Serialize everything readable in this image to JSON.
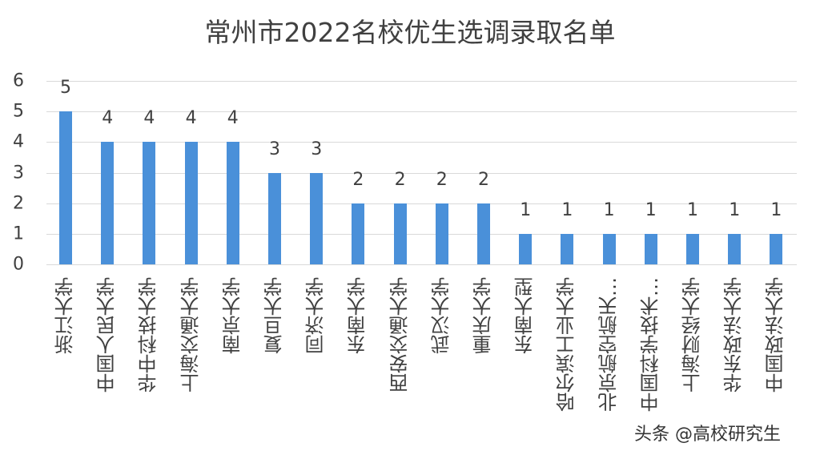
{
  "chart_data": {
    "type": "bar",
    "title": "常州市2022名校优生选调录取名单",
    "xlabel": "",
    "ylabel": "",
    "ylim": [
      0,
      6
    ],
    "yticks": [
      0,
      1,
      2,
      3,
      4,
      5,
      6
    ],
    "grid": true,
    "legend": null,
    "bar_color": "#4a90d9",
    "categories": [
      "浙江大学",
      "中国人民大学",
      "华中科技大学",
      "上海交通大学",
      "南京大学",
      "复旦大学",
      "同济大学",
      "东南大学",
      "西安交通大学",
      "武汉大学",
      "重庆大学",
      "东南大型",
      "哈尔滨工业大学",
      "北京航空航天…",
      "中国科学技术…",
      "上海财经大学",
      "华东政法大学",
      "中国政法大学"
    ],
    "values": [
      5,
      4,
      4,
      4,
      4,
      3,
      3,
      2,
      2,
      2,
      2,
      1,
      1,
      1,
      1,
      1,
      1,
      1
    ]
  },
  "watermark": "头条 @高校研究生"
}
